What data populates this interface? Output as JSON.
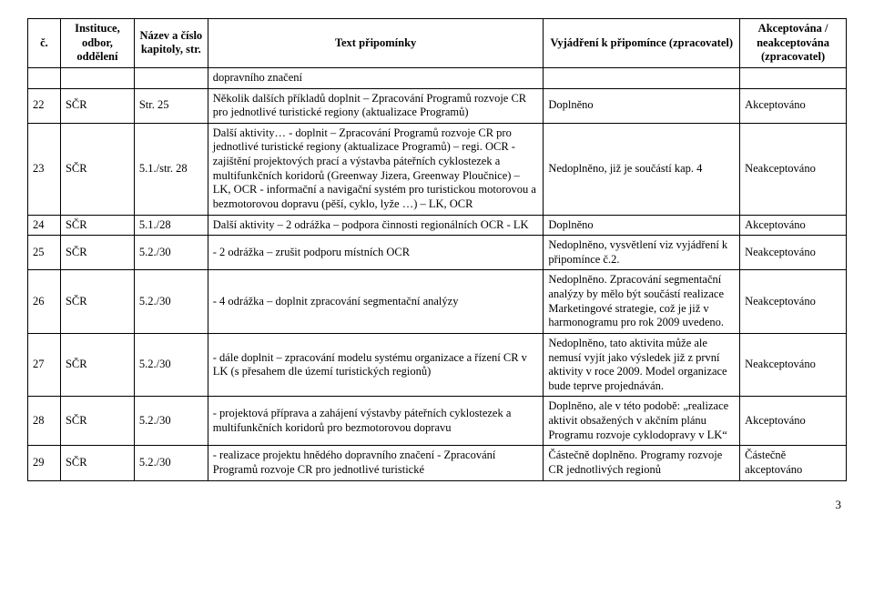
{
  "headers": {
    "c": "č.",
    "inst": "Instituce, odbor, oddělení",
    "kap": "Název a číslo kapitoly, str.",
    "text": "Text připomínky",
    "vyj": "Vyjádření k připomínce (zpracovatel)",
    "akc": "Akceptována / neakceptována (zpracovatel)"
  },
  "rows": [
    {
      "c": "",
      "inst": "",
      "kap": "",
      "text": "dopravního značení",
      "vyj": "",
      "akc": ""
    },
    {
      "c": "22",
      "inst": "SČR",
      "kap": "Str. 25",
      "text": "Několik dalších příkladů doplnit – Zpracování Programů rozvoje CR pro jednotlivé turistické regiony (aktualizace Programů)",
      "vyj": "Doplněno",
      "akc": "Akceptováno"
    },
    {
      "c": "23",
      "inst": "SČR",
      "kap": "5.1./str. 28",
      "text": "Další aktivity… - doplnit – Zpracování Programů rozvoje CR pro jednotlivé turistické regiony (aktualizace Programů) – regi. OCR\n- zajištění projektových prací a výstavba páteřních cyklostezek a multifunkčních koridorů (Greenway Jizera, Greenway Ploučnice) – LK, OCR\n- informační a navigační systém pro turistickou motorovou a bezmotorovou dopravu (pěší, cyklo, lyže …) – LK, OCR",
      "vyj": "Nedoplněno, již je součástí kap. 4",
      "akc": "Neakceptováno"
    },
    {
      "c": "24",
      "inst": "SČR",
      "kap": "5.1./28",
      "text": "Další aktivity – 2 odrážka – podpora činnosti regionálních OCR - LK",
      "vyj": "Doplněno",
      "akc": "Akceptováno"
    },
    {
      "c": "25",
      "inst": "SČR",
      "kap": "5.2./30",
      "text": "- 2 odrážka – zrušit podporu místních OCR",
      "vyj": "Nedoplněno, vysvětlení viz vyjádření k připomínce č.2.",
      "akc": "Neakceptováno"
    },
    {
      "c": "26",
      "inst": "SČR",
      "kap": "5.2./30",
      "text": "- 4 odrážka – doplnit zpracování segmentační analýzy",
      "vyj": "Nedoplněno. Zpracování segmentační analýzy by mělo být součástí realizace Marketingové strategie, což je již v harmonogramu pro rok 2009 uvedeno.",
      "akc": "Neakceptováno"
    },
    {
      "c": "27",
      "inst": "SČR",
      "kap": "5.2./30",
      "text": "- dále doplnit – zpracování modelu systému organizace a řízení CR v LK (s přesahem dle území turistických regionů)",
      "vyj": "Nedoplněno, tato aktivita může ale nemusí vyjít jako výsledek již z první aktivity v roce 2009. Model organizace bude teprve projednáván.",
      "akc": "Neakceptováno"
    },
    {
      "c": "28",
      "inst": "SČR",
      "kap": "5.2./30",
      "text": "- projektová příprava a zahájení výstavby páteřních cyklostezek a multifunkčních koridorů pro bezmotorovou dopravu",
      "vyj": "Doplněno, ale v této podobě: „realizace aktivit obsažených v akčním plánu Programu rozvoje cyklodopravy v LK“",
      "akc": "Akceptováno"
    },
    {
      "c": "29",
      "inst": "SČR",
      "kap": "5.2./30",
      "text": "- realizace projektu hnědého dopravního značení\n- Zpracování Programů rozvoje CR pro jednotlivé turistické",
      "vyj": "Částečně doplněno. Programy rozvoje CR jednotlivých regionů",
      "akc": "Částečně akceptováno"
    }
  ],
  "page": "3"
}
